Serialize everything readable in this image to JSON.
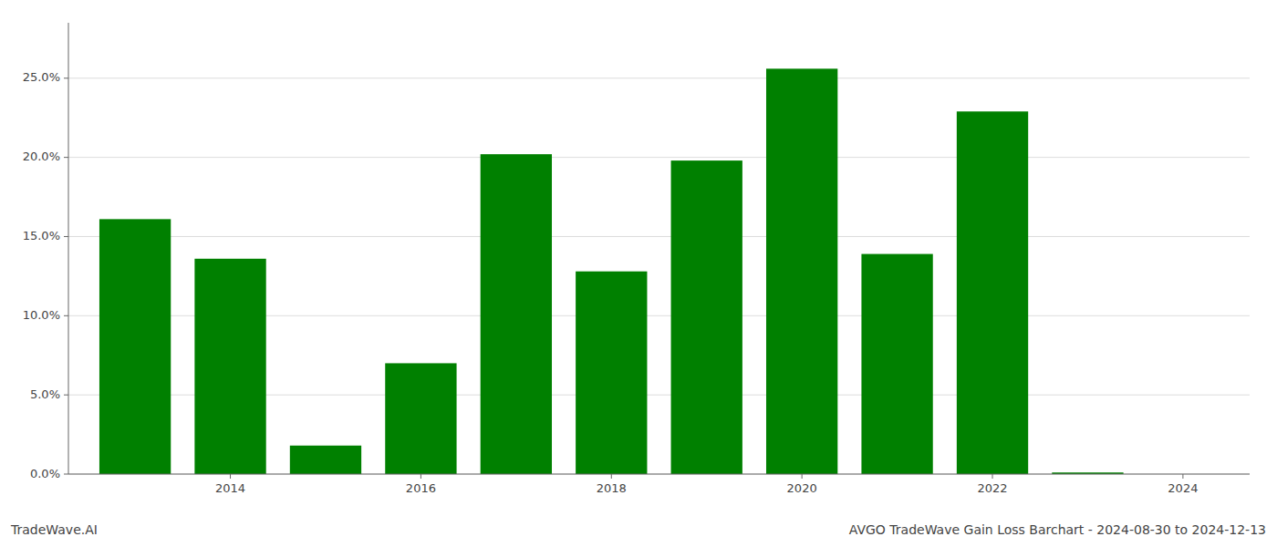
{
  "chart_data": {
    "type": "bar",
    "title": "AVGO TradeWave Gain Loss Barchart - 2024-08-30 to 2024-12-13",
    "annotations": [
      "TradeWave.AI"
    ],
    "x": [
      2013,
      2014,
      2015,
      2016,
      2017,
      2018,
      2019,
      2020,
      2021,
      2022,
      2023
    ],
    "values": [
      0.161,
      0.136,
      0.018,
      0.07,
      0.202,
      0.128,
      0.198,
      0.256,
      0.139,
      0.229,
      0.001
    ],
    "color": "#008000",
    "xlim": [
      2012.3,
      2024.7
    ],
    "xticks": [
      2014,
      2016,
      2018,
      2020,
      2022,
      2024
    ],
    "ylim": [
      0,
      0.285
    ],
    "yticks": [
      {
        "value": 0.0,
        "label": "0.0%"
      },
      {
        "value": 0.05,
        "label": "5.0%"
      },
      {
        "value": 0.1,
        "label": "10.0%"
      },
      {
        "value": 0.15,
        "label": "15.0%"
      },
      {
        "value": 0.2,
        "label": "20.0%"
      },
      {
        "value": 0.25,
        "label": "25.0%"
      }
    ],
    "grid": true
  }
}
